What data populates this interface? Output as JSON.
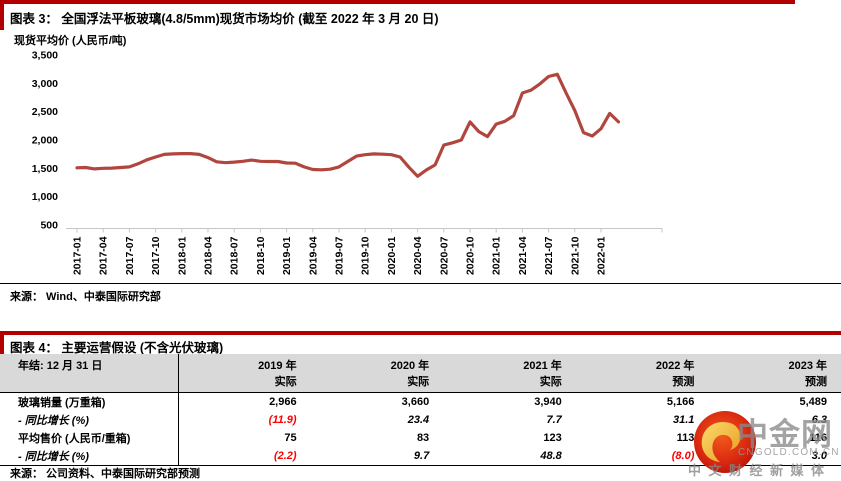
{
  "figure3": {
    "title": "图表 3： 全国浮法平板玻璃(4.8/5mm)现货市场均价 (截至 2022 年 3 月 20 日)",
    "source": "来源：  Wind、中泰国际研究部"
  },
  "chart_data": {
    "type": "line",
    "title": "全国浮法平板玻璃(4.8/5mm)现货市场均价",
    "ylabel": "现货平均价 (人民币/吨)",
    "xlabel": "",
    "ylim": [
      500,
      3500
    ],
    "ytick_interval": 500,
    "grid": false,
    "legend_position": "none",
    "line_color": "#B1463E",
    "x_tick_every": 3,
    "x": [
      "2017-01",
      "2017-02",
      "2017-03",
      "2017-04",
      "2017-05",
      "2017-06",
      "2017-07",
      "2017-08",
      "2017-09",
      "2017-10",
      "2017-11",
      "2017-12",
      "2018-01",
      "2018-02",
      "2018-03",
      "2018-04",
      "2018-05",
      "2018-06",
      "2018-07",
      "2018-08",
      "2018-09",
      "2018-10",
      "2018-11",
      "2018-12",
      "2019-01",
      "2019-02",
      "2019-03",
      "2019-04",
      "2019-05",
      "2019-06",
      "2019-07",
      "2019-08",
      "2019-09",
      "2019-10",
      "2019-11",
      "2019-12",
      "2020-01",
      "2020-02",
      "2020-03",
      "2020-04",
      "2020-05",
      "2020-06",
      "2020-07",
      "2020-08",
      "2020-09",
      "2020-10",
      "2020-11",
      "2020-12",
      "2021-01",
      "2021-02",
      "2021-03",
      "2021-04",
      "2021-05",
      "2021-06",
      "2021-07",
      "2021-08",
      "2021-09",
      "2021-10",
      "2021-11",
      "2021-12",
      "2022-01",
      "2022-02",
      "2022-03"
    ],
    "series": [
      {
        "name": "现货平均价 (人民币/吨)",
        "values": [
          1510,
          1515,
          1490,
          1500,
          1505,
          1515,
          1525,
          1580,
          1650,
          1700,
          1745,
          1755,
          1760,
          1760,
          1745,
          1690,
          1615,
          1600,
          1610,
          1625,
          1645,
          1625,
          1620,
          1620,
          1595,
          1590,
          1525,
          1480,
          1475,
          1485,
          1525,
          1620,
          1715,
          1740,
          1755,
          1750,
          1740,
          1700,
          1520,
          1360,
          1470,
          1560,
          1910,
          1950,
          2000,
          2320,
          2150,
          2060,
          2280,
          2330,
          2430,
          2830,
          2880,
          2990,
          3120,
          3160,
          2830,
          2520,
          2130,
          2070,
          2200,
          2470,
          2320
        ]
      }
    ]
  },
  "figure4": {
    "title": "图表 4： 主要运营假设 (不含光伏玻璃)",
    "source": "来源：  公司资料、中泰国际研究部预测",
    "row_header": "年结: 12 月 31 日",
    "columns": [
      {
        "year": "2019 年",
        "kind": "实际"
      },
      {
        "year": "2020 年",
        "kind": "实际"
      },
      {
        "year": "2021 年",
        "kind": "实际"
      },
      {
        "year": "2022 年",
        "kind": "预测"
      },
      {
        "year": "2023 年",
        "kind": "预测"
      }
    ],
    "rows": [
      {
        "label": "玻璃销量 (万重箱)",
        "italic": false,
        "values": [
          "2,966",
          "3,660",
          "3,940",
          "5,166",
          "5,489"
        ]
      },
      {
        "label": "-  同比增长 (%)",
        "italic": true,
        "values": [
          "(11.9)",
          "23.4",
          "7.7",
          "31.1",
          "6.3"
        ]
      },
      {
        "label": "平均售价 (人民币/重箱)",
        "italic": false,
        "values": [
          "75",
          "83",
          "123",
          "113",
          "116"
        ]
      },
      {
        "label": "-  同比增长 (%)",
        "italic": true,
        "values": [
          "(2.2)",
          "9.7",
          "48.8",
          "(8.0)",
          "3.0"
        ]
      }
    ]
  },
  "watermark": {
    "name": "中金网",
    "url": "CNGOLD.COM.CN",
    "tagline": "中文财经新媒体"
  },
  "colors": {
    "accent_red": "#B20000",
    "line_red": "#B1463E",
    "negative_red": "#FF0000",
    "header_gray": "#D9D9D9"
  }
}
